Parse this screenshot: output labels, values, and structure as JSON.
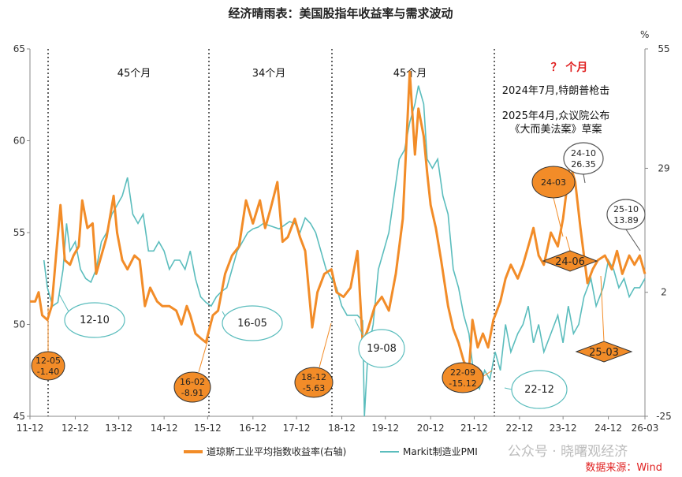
{
  "chart_data": {
    "type": "line",
    "title": "经济晴雨表：美国股指年收益率与需求波动",
    "x_tick_labels": [
      "11-12",
      "12-12",
      "13-12",
      "14-12",
      "15-12",
      "16-12",
      "17-12",
      "18-12",
      "19-12",
      "20-12",
      "21-12",
      "22-12",
      "23-12",
      "24-12",
      "26-03"
    ],
    "left_axis": {
      "ticks": [
        45,
        50,
        55,
        60,
        65
      ],
      "ylim": [
        45,
        65
      ]
    },
    "right_axis": {
      "unit": "%",
      "ticks": [
        -25,
        2,
        29,
        55
      ],
      "ylim": [
        -25,
        55
      ]
    },
    "series": [
      {
        "name": "道琼斯工业平均指数收益率(右轴)",
        "axis": "right",
        "color": "#f28c28",
        "points": [
          [
            0.0,
            0
          ],
          [
            0.3,
            0
          ],
          [
            0.5,
            2
          ],
          [
            0.7,
            -3
          ],
          [
            1.0,
            -4
          ],
          [
            1.25,
            -1
          ],
          [
            1.5,
            10
          ],
          [
            1.75,
            21
          ],
          [
            2.0,
            9
          ],
          [
            2.3,
            8
          ],
          [
            2.5,
            10
          ],
          [
            2.8,
            12
          ],
          [
            3.0,
            22
          ],
          [
            3.3,
            16
          ],
          [
            3.6,
            17
          ],
          [
            3.8,
            6
          ],
          [
            4.1,
            10
          ],
          [
            4.4,
            14
          ],
          [
            4.8,
            23
          ],
          [
            5.0,
            15
          ],
          [
            5.3,
            9
          ],
          [
            5.6,
            7
          ],
          [
            6.0,
            10
          ],
          [
            6.3,
            9
          ],
          [
            6.6,
            -1
          ],
          [
            6.9,
            3
          ],
          [
            7.3,
            0
          ],
          [
            7.6,
            -1
          ],
          [
            8.0,
            -1
          ],
          [
            8.4,
            -2
          ],
          [
            8.7,
            -5
          ],
          [
            9.0,
            -1
          ],
          [
            9.2,
            -3
          ],
          [
            9.5,
            -7
          ],
          [
            9.8,
            -8
          ],
          [
            10.1,
            -8.91
          ],
          [
            10.5,
            -3
          ],
          [
            10.8,
            -2
          ],
          [
            11.2,
            6
          ],
          [
            11.6,
            10
          ],
          [
            12.0,
            12
          ],
          [
            12.4,
            22
          ],
          [
            12.8,
            17
          ],
          [
            13.2,
            22
          ],
          [
            13.5,
            16
          ],
          [
            13.8,
            20
          ],
          [
            14.2,
            26
          ],
          [
            14.5,
            13
          ],
          [
            14.8,
            14
          ],
          [
            15.2,
            18
          ],
          [
            15.5,
            14
          ],
          [
            15.8,
            11
          ],
          [
            16.2,
            -5.63
          ],
          [
            16.5,
            2
          ],
          [
            16.9,
            6
          ],
          [
            17.3,
            7
          ],
          [
            17.6,
            2
          ],
          [
            18.0,
            1
          ],
          [
            18.4,
            3
          ],
          [
            18.8,
            11
          ],
          [
            19.1,
            -9
          ],
          [
            19.4,
            -6
          ],
          [
            19.8,
            -1
          ],
          [
            20.2,
            1
          ],
          [
            20.6,
            -2
          ],
          [
            21.0,
            6
          ],
          [
            21.4,
            18
          ],
          [
            21.8,
            50
          ],
          [
            22.1,
            32
          ],
          [
            22.3,
            42
          ],
          [
            22.6,
            36
          ],
          [
            22.8,
            28
          ],
          [
            23.0,
            21
          ],
          [
            23.3,
            16
          ],
          [
            23.6,
            9
          ],
          [
            24.0,
            -1
          ],
          [
            24.3,
            -6
          ],
          [
            24.6,
            -9
          ],
          [
            24.9,
            -13
          ],
          [
            25.2,
            -15.12
          ],
          [
            25.4,
            -4
          ],
          [
            25.7,
            -10
          ],
          [
            26.0,
            -7
          ],
          [
            26.3,
            -10
          ],
          [
            26.6,
            -4
          ],
          [
            27.0,
            0
          ],
          [
            27.3,
            5
          ],
          [
            27.6,
            8
          ],
          [
            28.0,
            5
          ],
          [
            28.3,
            8
          ],
          [
            28.6,
            12
          ],
          [
            28.9,
            16
          ],
          [
            29.2,
            10
          ],
          [
            29.5,
            8
          ],
          [
            29.9,
            15
          ],
          [
            30.3,
            12
          ],
          [
            30.6,
            18
          ],
          [
            31.0,
            30
          ],
          [
            31.3,
            26
          ],
          [
            31.6,
            16
          ],
          [
            32.0,
            4
          ],
          [
            32.3,
            7
          ],
          [
            32.6,
            9
          ],
          [
            33.0,
            10
          ],
          [
            33.4,
            7
          ],
          [
            33.7,
            11
          ],
          [
            34.0,
            6
          ],
          [
            34.4,
            10
          ],
          [
            34.7,
            8
          ],
          [
            35.0,
            10
          ],
          [
            35.3,
            6
          ]
        ]
      },
      {
        "name": "Markit制造业PMI",
        "axis": "left",
        "color": "#5bbdbd",
        "points": [
          [
            0.8,
            53.5
          ],
          [
            1.0,
            52
          ],
          [
            1.3,
            51
          ],
          [
            1.6,
            51.2
          ],
          [
            1.9,
            53
          ],
          [
            2.1,
            55.5
          ],
          [
            2.3,
            54
          ],
          [
            2.6,
            54.5
          ],
          [
            2.9,
            53
          ],
          [
            3.2,
            52.5
          ],
          [
            3.5,
            52.3
          ],
          [
            3.8,
            53
          ],
          [
            4.1,
            54.5
          ],
          [
            4.4,
            55
          ],
          [
            4.7,
            56
          ],
          [
            5.0,
            56.5
          ],
          [
            5.3,
            57
          ],
          [
            5.6,
            58
          ],
          [
            5.9,
            56
          ],
          [
            6.2,
            55.5
          ],
          [
            6.5,
            56
          ],
          [
            6.8,
            54
          ],
          [
            7.1,
            54
          ],
          [
            7.4,
            54.5
          ],
          [
            7.7,
            54
          ],
          [
            8.0,
            53
          ],
          [
            8.3,
            53.5
          ],
          [
            8.6,
            53.5
          ],
          [
            8.9,
            53
          ],
          [
            9.2,
            54
          ],
          [
            9.5,
            52.5
          ],
          [
            9.8,
            51.5
          ],
          [
            10.1,
            51.2
          ],
          [
            10.4,
            51
          ],
          [
            10.7,
            51.5
          ],
          [
            11.0,
            51.8
          ],
          [
            11.3,
            52
          ],
          [
            11.6,
            53
          ],
          [
            11.9,
            54
          ],
          [
            12.2,
            54.5
          ],
          [
            12.5,
            55
          ],
          [
            12.8,
            55.2
          ],
          [
            13.1,
            55.3
          ],
          [
            13.4,
            55.5
          ],
          [
            13.7,
            55.4
          ],
          [
            14.0,
            55.3
          ],
          [
            14.3,
            55.2
          ],
          [
            14.6,
            55.4
          ],
          [
            14.9,
            55.6
          ],
          [
            15.2,
            55.5
          ],
          [
            15.5,
            55
          ],
          [
            15.8,
            55.8
          ],
          [
            16.1,
            55.5
          ],
          [
            16.4,
            55
          ],
          [
            16.7,
            54
          ],
          [
            17.0,
            53
          ],
          [
            17.3,
            52.5
          ],
          [
            17.6,
            52
          ],
          [
            17.9,
            51
          ],
          [
            18.2,
            50.5
          ],
          [
            18.5,
            50.5
          ],
          [
            18.8,
            50.5
          ],
          [
            19.1,
            50.2
          ],
          [
            19.2,
            45
          ],
          [
            19.4,
            48.5
          ],
          [
            19.7,
            50
          ],
          [
            20.0,
            53
          ],
          [
            20.3,
            54
          ],
          [
            20.6,
            55
          ],
          [
            20.9,
            57
          ],
          [
            21.2,
            59
          ],
          [
            21.5,
            59.5
          ],
          [
            21.8,
            61
          ],
          [
            22.1,
            62
          ],
          [
            22.3,
            63
          ],
          [
            22.6,
            62
          ],
          [
            22.8,
            59
          ],
          [
            23.1,
            58.5
          ],
          [
            23.4,
            59
          ],
          [
            23.7,
            57
          ],
          [
            24.0,
            56
          ],
          [
            24.3,
            53
          ],
          [
            24.6,
            52
          ],
          [
            24.9,
            50.5
          ],
          [
            25.2,
            49.5
          ],
          [
            25.5,
            47
          ],
          [
            25.8,
            46.5
          ],
          [
            26.1,
            47.5
          ],
          [
            26.4,
            47
          ],
          [
            26.7,
            48.5
          ],
          [
            27.0,
            47.5
          ],
          [
            27.3,
            50
          ],
          [
            27.6,
            48.5
          ],
          [
            28.0,
            49.5
          ],
          [
            28.3,
            50
          ],
          [
            28.6,
            51
          ],
          [
            28.9,
            49
          ],
          [
            29.2,
            50
          ],
          [
            29.5,
            48.5
          ],
          [
            29.9,
            49.5
          ],
          [
            30.3,
            50.5
          ],
          [
            30.6,
            49
          ],
          [
            30.9,
            51
          ],
          [
            31.2,
            49.5
          ],
          [
            31.5,
            50
          ],
          [
            31.8,
            51.5
          ],
          [
            32.2,
            52.5
          ],
          [
            32.5,
            51
          ],
          [
            32.9,
            52
          ],
          [
            33.2,
            53.5
          ],
          [
            33.5,
            53
          ],
          [
            33.8,
            52
          ],
          [
            34.1,
            52.5
          ],
          [
            34.4,
            51.5
          ],
          [
            34.7,
            52
          ],
          [
            35.0,
            52
          ],
          [
            35.3,
            52.5
          ]
        ]
      }
    ],
    "cycle_labels": [
      "45个月",
      "34个月",
      "45个月"
    ],
    "annotations": {
      "question": "？ 个月",
      "note1": "2024年7月,特朗普枪击",
      "note2": "2025年4月,众议院公布",
      "note3": "《大而美法案》草案"
    },
    "callouts": {
      "trough_12_05": {
        "date": "12-05",
        "value": "-1.40"
      },
      "trough_16_02": {
        "date": "16-02",
        "value": "-8.91"
      },
      "trough_18_12": {
        "date": "18-12",
        "value": "-5.63"
      },
      "trough_22_09": {
        "date": "22-09",
        "value": "-15.12"
      },
      "peak_24_03": {
        "date": "24-03"
      },
      "peak_24_10": {
        "date": "24-10",
        "value": "26.35"
      },
      "latest_25_10": {
        "date": "25-10",
        "value": "13.89"
      },
      "pmi_12_10": {
        "date": "12-10"
      },
      "pmi_16_05": {
        "date": "16-05"
      },
      "pmi_19_08": {
        "date": "19-08"
      },
      "pmi_22_12": {
        "date": "22-12"
      },
      "event_24_06": {
        "date": "24-06"
      },
      "event_25_03": {
        "date": "25-03"
      }
    },
    "legend": [
      "道琼斯工业平均指数收益率(右轴)",
      "Markit制造业PMI"
    ],
    "source": "数据来源：Wind",
    "watermark": "公众号 · 晓曙观经济"
  }
}
